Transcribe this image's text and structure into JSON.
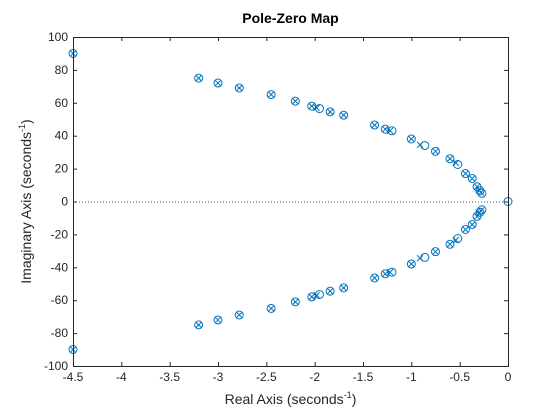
{
  "chart_data": {
    "type": "scatter",
    "title": "Pole-Zero Map",
    "xlabel": {
      "text": "Real  Axis  (seconds",
      "sup": "-1",
      "close": ")"
    },
    "ylabel": {
      "text": "Imaginary  Axis  (seconds",
      "sup": "-1",
      "close": ")"
    },
    "xlim": [
      -4.5,
      0
    ],
    "ylim": [
      -100,
      100
    ],
    "xticks": [
      -4.5,
      -4,
      -3.5,
      -3,
      -2.5,
      -2,
      -1.5,
      -1,
      -0.5,
      0
    ],
    "xtick_labels": [
      "-4.5",
      "-4",
      "-3.5",
      "-3",
      "-2.5",
      "-2",
      "-1.5",
      "-1",
      "-0.5",
      "0"
    ],
    "yticks": [
      -100,
      -80,
      -60,
      -40,
      -20,
      0,
      20,
      40,
      60,
      80,
      100
    ],
    "ytick_labels": [
      "-100",
      "-80",
      "-60",
      "-40",
      "-20",
      "0",
      "20",
      "40",
      "60",
      "80",
      "100"
    ],
    "grid": false,
    "zero_line": "dotted",
    "colors": {
      "marker": "#0072BD",
      "zero_line": "#5a5a5a"
    },
    "series": [
      {
        "marker": "pole-x",
        "points": [
          [
            -4.5,
            90
          ],
          [
            -3.2,
            75
          ],
          [
            -3.0,
            72
          ],
          [
            -2.78,
            69
          ],
          [
            -2.45,
            65
          ],
          [
            -2.2,
            61
          ],
          [
            -2.03,
            58
          ],
          [
            -1.98,
            57
          ],
          [
            -1.84,
            54.5
          ],
          [
            -1.7,
            52.5
          ],
          [
            -1.38,
            46.5
          ],
          [
            -1.27,
            44
          ],
          [
            -1.22,
            43
          ],
          [
            -1.0,
            38
          ],
          [
            -0.91,
            34.5
          ],
          [
            -0.75,
            30.5
          ],
          [
            -0.6,
            26
          ],
          [
            -0.54,
            23.5
          ],
          [
            -0.44,
            17
          ],
          [
            -0.37,
            14
          ],
          [
            -0.32,
            9
          ],
          [
            -0.3,
            7
          ],
          [
            -0.28,
            5.5
          ],
          [
            -4.5,
            -90
          ],
          [
            -3.2,
            -75
          ],
          [
            -3.0,
            -72
          ],
          [
            -2.78,
            -69
          ],
          [
            -2.45,
            -65
          ],
          [
            -2.2,
            -61
          ],
          [
            -2.03,
            -58
          ],
          [
            -1.98,
            -57
          ],
          [
            -1.84,
            -54.5
          ],
          [
            -1.7,
            -52.5
          ],
          [
            -1.38,
            -46.5
          ],
          [
            -1.27,
            -44
          ],
          [
            -1.22,
            -43
          ],
          [
            -1.0,
            -38
          ],
          [
            -0.91,
            -34.5
          ],
          [
            -0.75,
            -30.5
          ],
          [
            -0.6,
            -26
          ],
          [
            -0.54,
            -23.5
          ],
          [
            -0.44,
            -17
          ],
          [
            -0.37,
            -14
          ],
          [
            -0.32,
            -9
          ],
          [
            -0.3,
            -7
          ],
          [
            -0.28,
            -5.5
          ]
        ]
      },
      {
        "marker": "zero-o",
        "points": [
          [
            -4.5,
            90
          ],
          [
            -3.2,
            75
          ],
          [
            -3.0,
            72
          ],
          [
            -2.78,
            69
          ],
          [
            -2.45,
            65
          ],
          [
            -2.2,
            61
          ],
          [
            -2.03,
            58
          ],
          [
            -1.95,
            56.5
          ],
          [
            -1.84,
            54.5
          ],
          [
            -1.7,
            52.5
          ],
          [
            -1.38,
            46.5
          ],
          [
            -1.27,
            44
          ],
          [
            -1.2,
            43
          ],
          [
            -1.0,
            38
          ],
          [
            -0.86,
            34
          ],
          [
            -0.75,
            30.5
          ],
          [
            -0.6,
            26
          ],
          [
            -0.52,
            22.5
          ],
          [
            -0.44,
            17
          ],
          [
            -0.37,
            14
          ],
          [
            -0.32,
            9
          ],
          [
            -0.29,
            6.5
          ],
          [
            -0.27,
            5
          ],
          [
            -4.5,
            -90
          ],
          [
            -3.2,
            -75
          ],
          [
            -3.0,
            -72
          ],
          [
            -2.78,
            -69
          ],
          [
            -2.45,
            -65
          ],
          [
            -2.2,
            -61
          ],
          [
            -2.03,
            -58
          ],
          [
            -1.95,
            -56.5
          ],
          [
            -1.84,
            -54.5
          ],
          [
            -1.7,
            -52.5
          ],
          [
            -1.38,
            -46.5
          ],
          [
            -1.27,
            -44
          ],
          [
            -1.2,
            -43
          ],
          [
            -1.0,
            -38
          ],
          [
            -0.86,
            -34
          ],
          [
            -0.75,
            -30.5
          ],
          [
            -0.6,
            -26
          ],
          [
            -0.52,
            -22.5
          ],
          [
            -0.44,
            -17
          ],
          [
            -0.37,
            -14
          ],
          [
            -0.32,
            -9
          ],
          [
            -0.29,
            -6.5
          ],
          [
            -0.27,
            -5
          ],
          [
            0,
            0
          ]
        ]
      }
    ]
  }
}
